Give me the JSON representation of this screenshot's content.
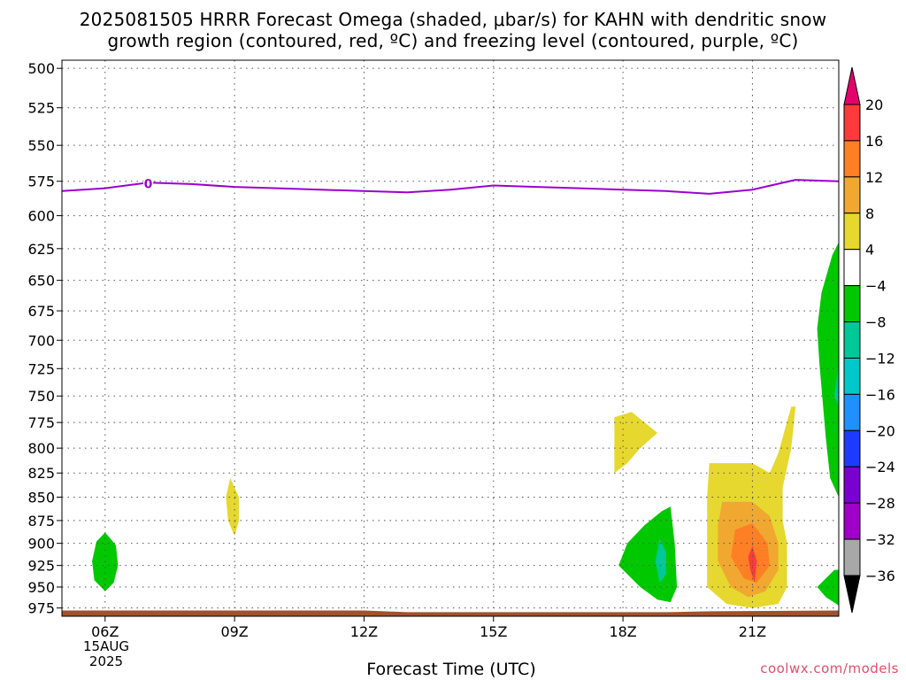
{
  "header": {
    "title_line1": "2025081505 HRRR Forecast Omega (shaded, μbar/s) for KAHN with dendritic snow",
    "title_line2": "growth region (contoured, red, ºC) and freezing level (contoured, purple, ºC)"
  },
  "xaxis": {
    "title": "Forecast Time (UTC)",
    "date_day": "15AUG",
    "date_year": "2025"
  },
  "credit": "coolwx.com/models",
  "colors": {
    "freezing_level": "#9b00d0",
    "ground": "#a0522d",
    "grid": "#555555"
  },
  "chart_data": {
    "type": "contour",
    "yscale": "pressure (hPa), inverted",
    "ylim": [
      985,
      495
    ],
    "xlim_hours": [
      5,
      23
    ],
    "x_ticks": [
      "06Z",
      "09Z",
      "12Z",
      "15Z",
      "18Z",
      "21Z"
    ],
    "x_tick_hours": [
      6,
      9,
      12,
      15,
      18,
      21
    ],
    "y_ticks": [
      500,
      525,
      550,
      575,
      600,
      625,
      650,
      675,
      700,
      725,
      750,
      775,
      800,
      825,
      850,
      875,
      900,
      925,
      950,
      975
    ],
    "grid": true,
    "freezing_level": {
      "label": "0",
      "points": [
        [
          5,
          582
        ],
        [
          6,
          580
        ],
        [
          7,
          576
        ],
        [
          8,
          577
        ],
        [
          9,
          579
        ],
        [
          10,
          580
        ],
        [
          11,
          581
        ],
        [
          12,
          582
        ],
        [
          13,
          583
        ],
        [
          14,
          581
        ],
        [
          15,
          578
        ],
        [
          16,
          579
        ],
        [
          17,
          580
        ],
        [
          18,
          581
        ],
        [
          19,
          582
        ],
        [
          20,
          584
        ],
        [
          21,
          581
        ],
        [
          22,
          574
        ],
        [
          23,
          575
        ]
      ]
    },
    "colorbar": {
      "labels": [
        "20",
        "16",
        "12",
        "8",
        "4",
        "−4",
        "−8",
        "−12",
        "−16",
        "−20",
        "−24",
        "−28",
        "−32",
        "−36"
      ],
      "bins": [
        {
          "value": "above 20",
          "color": "#e6006e"
        },
        {
          "value": "16 to 20",
          "color": "#ff3a3a"
        },
        {
          "value": "12 to 16",
          "color": "#ff7f24"
        },
        {
          "value": "8 to 12",
          "color": "#f0a830"
        },
        {
          "value": "4 to 8",
          "color": "#e6d82e"
        },
        {
          "value": "-4 to 4",
          "color": "#ffffff"
        },
        {
          "value": "-8 to -4",
          "color": "#00c800"
        },
        {
          "value": "-12 to -8",
          "color": "#00c896"
        },
        {
          "value": "-16 to -12",
          "color": "#00c8c8"
        },
        {
          "value": "-20 to -16",
          "color": "#1e90ff"
        },
        {
          "value": "-24 to -20",
          "color": "#1e3cff"
        },
        {
          "value": "-28 to -24",
          "color": "#7a00d0"
        },
        {
          "value": "-32 to -28",
          "color": "#a000c8"
        },
        {
          "value": "-36 to -32",
          "color": "#a8a8a8"
        },
        {
          "value": "below -36",
          "color": "#000000"
        }
      ]
    },
    "omega_regions": [
      {
        "name": "green-0610",
        "color": "#00c800",
        "points": [
          [
            6.0,
            888
          ],
          [
            6.25,
            902
          ],
          [
            6.3,
            925
          ],
          [
            6.2,
            945
          ],
          [
            6.0,
            955
          ],
          [
            5.75,
            942
          ],
          [
            5.7,
            920
          ],
          [
            5.8,
            898
          ]
        ]
      },
      {
        "name": "yellow-0900",
        "color": "#e6d82e",
        "points": [
          [
            8.9,
            830
          ],
          [
            9.1,
            850
          ],
          [
            9.1,
            875
          ],
          [
            9.0,
            892
          ],
          [
            8.85,
            875
          ],
          [
            8.8,
            850
          ]
        ]
      },
      {
        "name": "yellow-1800",
        "color": "#e6d82e",
        "points": [
          [
            17.8,
            770
          ],
          [
            18.2,
            765
          ],
          [
            18.8,
            785
          ],
          [
            18.4,
            800
          ],
          [
            18.1,
            815
          ],
          [
            17.8,
            825
          ],
          [
            17.8,
            800
          ]
        ]
      },
      {
        "name": "green-1900",
        "color": "#00c800",
        "points": [
          [
            19.1,
            860
          ],
          [
            19.2,
            900
          ],
          [
            19.25,
            950
          ],
          [
            19.1,
            968
          ],
          [
            18.8,
            965
          ],
          [
            18.4,
            950
          ],
          [
            17.9,
            925
          ],
          [
            18.1,
            900
          ],
          [
            18.5,
            880
          ],
          [
            18.9,
            865
          ]
        ]
      },
      {
        "name": "teal-1900",
        "color": "#00c896",
        "points": [
          [
            18.85,
            895
          ],
          [
            19.0,
            910
          ],
          [
            19.0,
            935
          ],
          [
            18.85,
            945
          ],
          [
            18.75,
            920
          ]
        ]
      },
      {
        "name": "yellow-2100",
        "color": "#e6d82e",
        "points": [
          [
            20.0,
            815
          ],
          [
            21.0,
            815
          ],
          [
            21.4,
            825
          ],
          [
            21.6,
            805
          ],
          [
            21.9,
            760
          ],
          [
            22.0,
            760
          ],
          [
            21.9,
            800
          ],
          [
            21.7,
            840
          ],
          [
            21.7,
            875
          ],
          [
            21.8,
            900
          ],
          [
            21.8,
            950
          ],
          [
            21.6,
            970
          ],
          [
            21.0,
            975
          ],
          [
            20.4,
            970
          ],
          [
            19.95,
            950
          ],
          [
            19.95,
            900
          ],
          [
            19.95,
            850
          ]
        ]
      },
      {
        "name": "orange-light-2100",
        "color": "#f0a830",
        "points": [
          [
            20.3,
            855
          ],
          [
            21.0,
            855
          ],
          [
            21.4,
            870
          ],
          [
            21.6,
            900
          ],
          [
            21.6,
            930
          ],
          [
            21.3,
            955
          ],
          [
            20.9,
            962
          ],
          [
            20.5,
            950
          ],
          [
            20.2,
            920
          ],
          [
            20.2,
            880
          ]
        ]
      },
      {
        "name": "orange-2100",
        "color": "#ff7f24",
        "points": [
          [
            20.6,
            885
          ],
          [
            21.0,
            878
          ],
          [
            21.35,
            900
          ],
          [
            21.4,
            925
          ],
          [
            21.1,
            945
          ],
          [
            20.8,
            940
          ],
          [
            20.5,
            915
          ]
        ]
      },
      {
        "name": "red-2100",
        "color": "#ff3a3a",
        "points": [
          [
            21.0,
            903
          ],
          [
            21.1,
            920
          ],
          [
            21.05,
            945
          ],
          [
            20.95,
            930
          ],
          [
            20.9,
            915
          ]
        ]
      },
      {
        "name": "green-2300-upper",
        "color": "#00c800",
        "points": [
          [
            23.0,
            620
          ],
          [
            23.0,
            850
          ],
          [
            22.8,
            830
          ],
          [
            22.7,
            790
          ],
          [
            22.55,
            720
          ],
          [
            22.5,
            690
          ],
          [
            22.6,
            660
          ],
          [
            22.85,
            630
          ]
        ]
      },
      {
        "name": "teal-2300",
        "color": "#00c896",
        "points": [
          [
            23.0,
            720
          ],
          [
            23.0,
            760
          ],
          [
            22.9,
            750
          ]
        ]
      },
      {
        "name": "green-2300-lower",
        "color": "#00c800",
        "points": [
          [
            23.0,
            930
          ],
          [
            23.0,
            972
          ],
          [
            22.7,
            962
          ],
          [
            22.5,
            950
          ],
          [
            22.7,
            940
          ],
          [
            22.9,
            930
          ]
        ]
      }
    ],
    "ground": {
      "points": [
        [
          5,
          978
        ],
        [
          12,
          978
        ],
        [
          13,
          980
        ],
        [
          19,
          980
        ],
        [
          20,
          979
        ],
        [
          23,
          978
        ]
      ]
    }
  }
}
